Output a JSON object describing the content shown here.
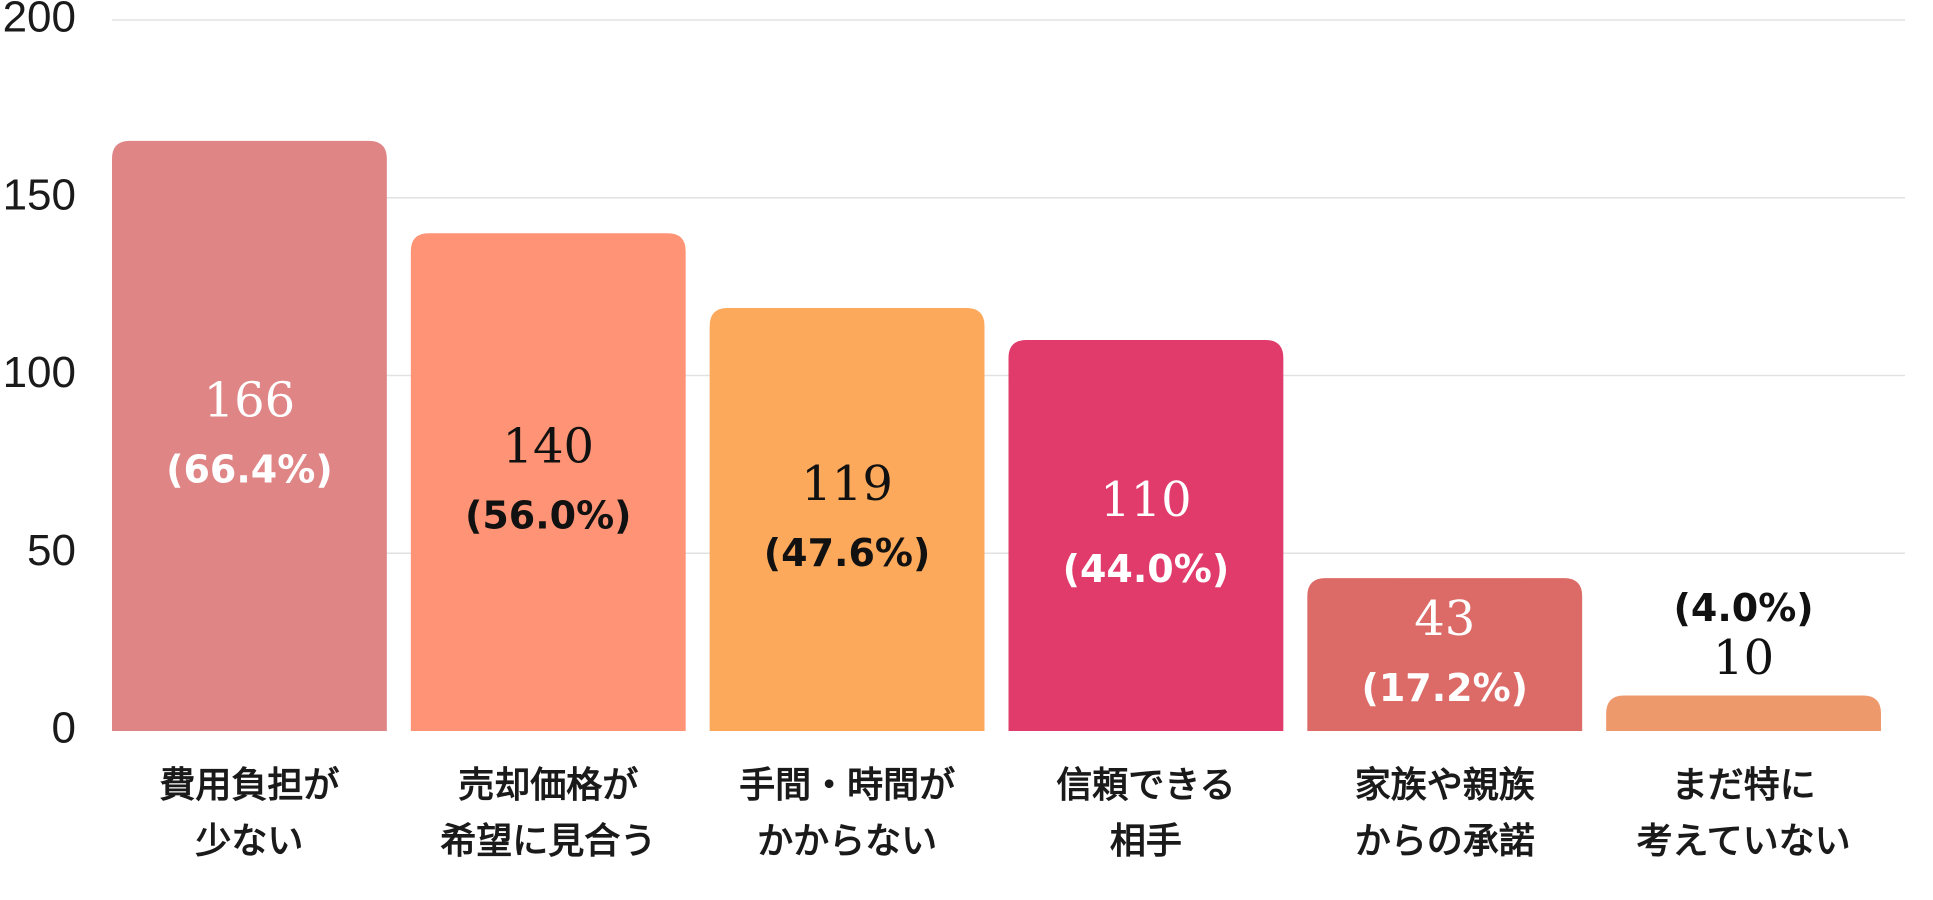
{
  "chart_data": {
    "type": "bar",
    "title": "",
    "xlabel": "",
    "ylabel": "",
    "ylim": [
      0,
      200
    ],
    "yticks": [
      "0",
      "50",
      "100",
      "150",
      "200"
    ],
    "grid": true,
    "categories": [
      [
        "費用負担が",
        "少ない"
      ],
      [
        "売却価格が",
        "希望に見合う"
      ],
      [
        "手間・時間が",
        "かからない"
      ],
      [
        "信頼できる",
        "相手"
      ],
      [
        "家族や親族",
        "からの承諾"
      ],
      [
        "まだ特に",
        "考えていない"
      ]
    ],
    "values": [
      166,
      140,
      119,
      110,
      43,
      10
    ],
    "value_labels": [
      "166",
      "140",
      "119",
      "110",
      "43",
      "10"
    ],
    "percent_labels": [
      "(66.4%)",
      "(56.0%)",
      "(47.6%)",
      "(44.0%)",
      "(17.2%)",
      "(4.0%)"
    ],
    "colors": [
      "#e08585",
      "#fe9375",
      "#fda95b",
      "#e13b6c",
      "#dc6b67",
      "#ee996b"
    ],
    "label_colors": [
      "#ffffff",
      "#111111",
      "#111111",
      "#ffffff",
      "#ffffff",
      "#111111"
    ]
  }
}
